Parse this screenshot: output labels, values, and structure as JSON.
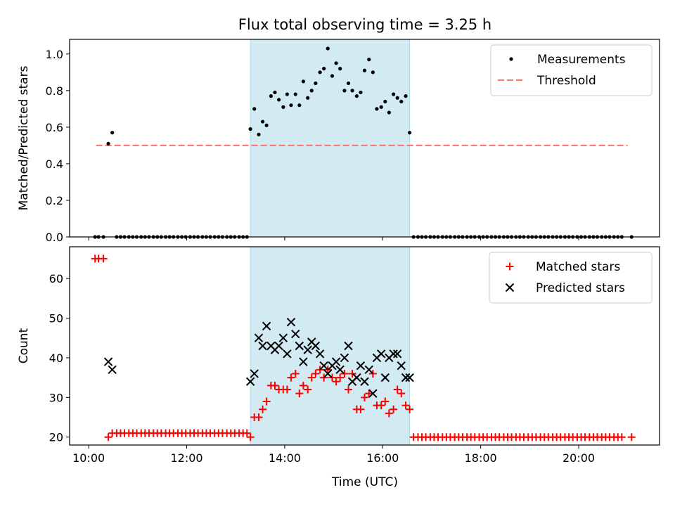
{
  "figure": {
    "title": "Flux total observing time = 3.25 h",
    "xlabel": "Time (UTC)",
    "x_ticks": [
      "10:00",
      "12:00",
      "14:00",
      "16:00",
      "18:00",
      "20:00"
    ],
    "x_tick_values_h": [
      10,
      12,
      14,
      16,
      18,
      20
    ],
    "xlim_h": [
      9.61,
      21.65
    ],
    "shaded_span_h": [
      13.3,
      16.55
    ],
    "shade_color": "#add8e6"
  },
  "chart_data": [
    {
      "type": "scatter",
      "ylabel": "Matched/Predicted stars",
      "ylim": [
        0,
        1.08
      ],
      "y_ticks": [
        "0.0",
        "0.2",
        "0.4",
        "0.6",
        "0.8",
        "1.0"
      ],
      "y_tick_values": [
        0,
        0.2,
        0.4,
        0.6,
        0.8,
        1.0
      ],
      "legend_position": "top-right",
      "threshold": {
        "name": "Threshold",
        "value": 0.5,
        "x_range_h": [
          10.15,
          21.0
        ],
        "color": "#ff7070",
        "style": "dashed"
      },
      "series": [
        {
          "name": "Measurements",
          "marker": "dot",
          "color": "#000000",
          "x_h": [
            10.13,
            10.2,
            10.3,
            10.4,
            10.48,
            10.57,
            10.65,
            10.73,
            10.82,
            10.9,
            10.98,
            11.07,
            11.15,
            11.23,
            11.32,
            11.4,
            11.48,
            11.57,
            11.65,
            11.73,
            11.82,
            11.9,
            11.98,
            12.07,
            12.15,
            12.23,
            12.32,
            12.4,
            12.48,
            12.57,
            12.65,
            12.73,
            12.82,
            12.9,
            12.98,
            13.07,
            13.15,
            13.23,
            13.3,
            13.38,
            13.47,
            13.55,
            13.63,
            13.72,
            13.8,
            13.88,
            13.97,
            14.05,
            14.13,
            14.22,
            14.3,
            14.38,
            14.47,
            14.55,
            14.63,
            14.72,
            14.8,
            14.88,
            14.97,
            15.05,
            15.13,
            15.22,
            15.3,
            15.38,
            15.47,
            15.55,
            15.63,
            15.72,
            15.8,
            15.88,
            15.97,
            16.05,
            16.13,
            16.22,
            16.3,
            16.38,
            16.47,
            16.55,
            16.63,
            16.72,
            16.8,
            16.88,
            16.97,
            17.05,
            17.13,
            17.22,
            17.3,
            17.38,
            17.47,
            17.55,
            17.63,
            17.72,
            17.8,
            17.88,
            17.97,
            18.05,
            18.13,
            18.22,
            18.3,
            18.38,
            18.47,
            18.55,
            18.63,
            18.72,
            18.8,
            18.88,
            18.97,
            19.05,
            19.13,
            19.22,
            19.3,
            19.38,
            19.47,
            19.55,
            19.63,
            19.72,
            19.8,
            19.88,
            19.97,
            20.05,
            20.13,
            20.22,
            20.3,
            20.38,
            20.47,
            20.55,
            20.63,
            20.72,
            20.8,
            20.88,
            21.08
          ],
          "y": [
            0,
            0,
            0,
            0.51,
            0.57,
            0,
            0,
            0,
            0,
            0,
            0,
            0,
            0,
            0,
            0,
            0,
            0,
            0,
            0,
            0,
            0,
            0,
            0,
            0,
            0,
            0,
            0,
            0,
            0,
            0,
            0,
            0,
            0,
            0,
            0,
            0,
            0,
            0,
            0.59,
            0.7,
            0.56,
            0.63,
            0.61,
            0.77,
            0.79,
            0.75,
            0.71,
            0.78,
            0.72,
            0.78,
            0.72,
            0.85,
            0.76,
            0.8,
            0.84,
            0.9,
            0.92,
            1.03,
            0.88,
            0.95,
            0.92,
            0.8,
            0.84,
            0.8,
            0.77,
            0.79,
            0.91,
            0.97,
            0.9,
            0.7,
            0.71,
            0.74,
            0.68,
            0.78,
            0.76,
            0.74,
            0.77,
            0.57,
            0,
            0,
            0,
            0,
            0,
            0,
            0,
            0,
            0,
            0,
            0,
            0,
            0,
            0,
            0,
            0,
            0,
            0,
            0,
            0,
            0,
            0,
            0,
            0,
            0,
            0,
            0,
            0,
            0,
            0,
            0,
            0,
            0,
            0,
            0,
            0,
            0,
            0,
            0,
            0,
            0,
            0,
            0,
            0,
            0,
            0,
            0,
            0,
            0,
            0,
            0,
            0,
            0
          ]
        }
      ]
    },
    {
      "type": "scatter",
      "ylabel": "Count",
      "ylim": [
        18,
        68
      ],
      "y_ticks": [
        "20",
        "30",
        "40",
        "50",
        "60"
      ],
      "y_tick_values": [
        20,
        30,
        40,
        50,
        60
      ],
      "legend_position": "top-right",
      "series": [
        {
          "name": "Matched stars",
          "marker": "plus",
          "color": "#ff0000",
          "x_h": [
            10.13,
            10.2,
            10.3,
            10.4,
            10.48,
            10.57,
            10.65,
            10.73,
            10.82,
            10.9,
            10.98,
            11.07,
            11.15,
            11.23,
            11.32,
            11.4,
            11.48,
            11.57,
            11.65,
            11.73,
            11.82,
            11.9,
            11.98,
            12.07,
            12.15,
            12.23,
            12.32,
            12.4,
            12.48,
            12.57,
            12.65,
            12.73,
            12.82,
            12.9,
            12.98,
            13.07,
            13.15,
            13.23,
            13.3,
            13.38,
            13.47,
            13.55,
            13.63,
            13.72,
            13.8,
            13.88,
            13.97,
            14.05,
            14.13,
            14.22,
            14.3,
            14.38,
            14.47,
            14.55,
            14.63,
            14.72,
            14.8,
            14.88,
            14.97,
            15.05,
            15.13,
            15.22,
            15.3,
            15.38,
            15.47,
            15.55,
            15.63,
            15.72,
            15.8,
            15.88,
            15.97,
            16.05,
            16.13,
            16.22,
            16.3,
            16.38,
            16.47,
            16.55,
            16.63,
            16.72,
            16.8,
            16.88,
            16.97,
            17.05,
            17.13,
            17.22,
            17.3,
            17.38,
            17.47,
            17.55,
            17.63,
            17.72,
            17.8,
            17.88,
            17.97,
            18.05,
            18.13,
            18.22,
            18.3,
            18.38,
            18.47,
            18.55,
            18.63,
            18.72,
            18.8,
            18.88,
            18.97,
            19.05,
            19.13,
            19.22,
            19.3,
            19.38,
            19.47,
            19.55,
            19.63,
            19.72,
            19.8,
            19.88,
            19.97,
            20.05,
            20.13,
            20.22,
            20.3,
            20.38,
            20.47,
            20.55,
            20.63,
            20.72,
            20.8,
            20.88,
            21.08
          ],
          "y": [
            65,
            65,
            65,
            20,
            21,
            21,
            21,
            21,
            21,
            21,
            21,
            21,
            21,
            21,
            21,
            21,
            21,
            21,
            21,
            21,
            21,
            21,
            21,
            21,
            21,
            21,
            21,
            21,
            21,
            21,
            21,
            21,
            21,
            21,
            21,
            21,
            21,
            21,
            20,
            25,
            25,
            27,
            29,
            33,
            33,
            32,
            32,
            32,
            35,
            36,
            31,
            33,
            32,
            35,
            36,
            37,
            35,
            37,
            35,
            34,
            35,
            36,
            32,
            36,
            27,
            27,
            30,
            31,
            36,
            28,
            28,
            29,
            26,
            27,
            32,
            31,
            28,
            27,
            20,
            20,
            20,
            20,
            20,
            20,
            20,
            20,
            20,
            20,
            20,
            20,
            20,
            20,
            20,
            20,
            20,
            20,
            20,
            20,
            20,
            20,
            20,
            20,
            20,
            20,
            20,
            20,
            20,
            20,
            20,
            20,
            20,
            20,
            20,
            20,
            20,
            20,
            20,
            20,
            20,
            20,
            20,
            20,
            20,
            20,
            20,
            20,
            20,
            20,
            20,
            20,
            20
          ]
        },
        {
          "name": "Predicted stars",
          "marker": "cross",
          "color": "#000000",
          "x_h": [
            10.4,
            10.48,
            13.3,
            13.38,
            13.47,
            13.55,
            13.63,
            13.72,
            13.8,
            13.88,
            13.97,
            14.05,
            14.13,
            14.22,
            14.3,
            14.38,
            14.47,
            14.55,
            14.63,
            14.72,
            14.8,
            14.88,
            14.97,
            15.05,
            15.13,
            15.22,
            15.3,
            15.38,
            15.47,
            15.55,
            15.63,
            15.72,
            15.8,
            15.88,
            15.97,
            16.05,
            16.13,
            16.22,
            16.3,
            16.38,
            16.47,
            16.55
          ],
          "y": [
            39,
            37,
            34,
            36,
            45,
            43,
            48,
            43,
            42,
            43,
            45,
            41,
            49,
            46,
            43,
            39,
            42,
            44,
            43,
            41,
            38,
            36,
            38,
            39,
            37,
            40,
            43,
            34,
            35,
            38,
            34,
            37,
            31,
            40,
            41,
            35,
            40,
            41,
            41,
            38,
            35,
            35
          ]
        }
      ]
    }
  ]
}
